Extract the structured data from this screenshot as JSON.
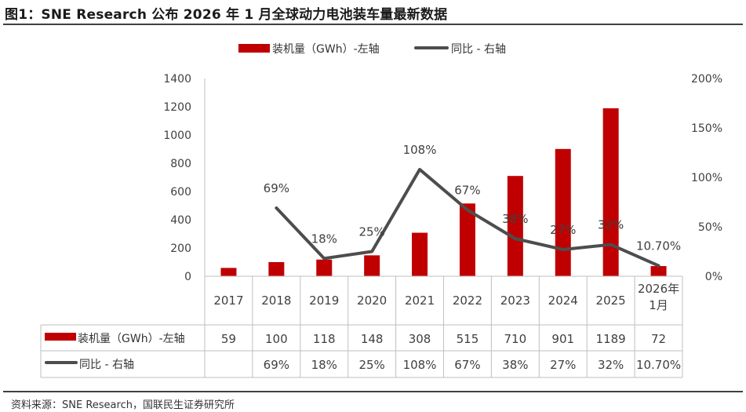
{
  "title": "图1：SNE Research 公布 2026 年 1 月全球动力电池装车量最新数据",
  "source": "资料来源：SNE Research，国联民生证券研究所",
  "colors": {
    "bar": "#C00000",
    "line": "#4D4D4D",
    "grid_text": "#404040"
  },
  "chart_data": {
    "type": "bar",
    "categories": [
      "2017",
      "2018",
      "2019",
      "2020",
      "2021",
      "2022",
      "2023",
      "2024",
      "2025",
      "2026年1月"
    ],
    "series": [
      {
        "name": "装机量（GWh）-左轴",
        "type": "bar",
        "axis": "left",
        "values": [
          59,
          100,
          118,
          148,
          308,
          515,
          710,
          901,
          1189,
          72
        ]
      },
      {
        "name": "同比 - 右轴",
        "type": "line",
        "axis": "right",
        "values": [
          null,
          0.69,
          0.18,
          0.25,
          1.08,
          0.67,
          0.38,
          0.27,
          0.32,
          0.107
        ],
        "labels": [
          "",
          "69%",
          "18%",
          "25%",
          "108%",
          "67%",
          "38%",
          "27%",
          "32%",
          "10.70%"
        ]
      }
    ],
    "table": {
      "bar_row": [
        "59",
        "100",
        "118",
        "148",
        "308",
        "515",
        "710",
        "901",
        "1189",
        "72"
      ],
      "line_row": [
        "",
        "69%",
        "18%",
        "25%",
        "108%",
        "67%",
        "38%",
        "27%",
        "32%",
        "10.70%"
      ]
    },
    "left_axis": {
      "ylim": [
        0,
        1400
      ],
      "ticks": [
        "0",
        "200",
        "400",
        "600",
        "800",
        "1000",
        "1200",
        "1400"
      ]
    },
    "right_axis": {
      "ylim": [
        0,
        2
      ],
      "ticks": [
        "0%",
        "50%",
        "100%",
        "150%",
        "200%"
      ]
    },
    "legend_position": "top-center",
    "grid": false
  }
}
